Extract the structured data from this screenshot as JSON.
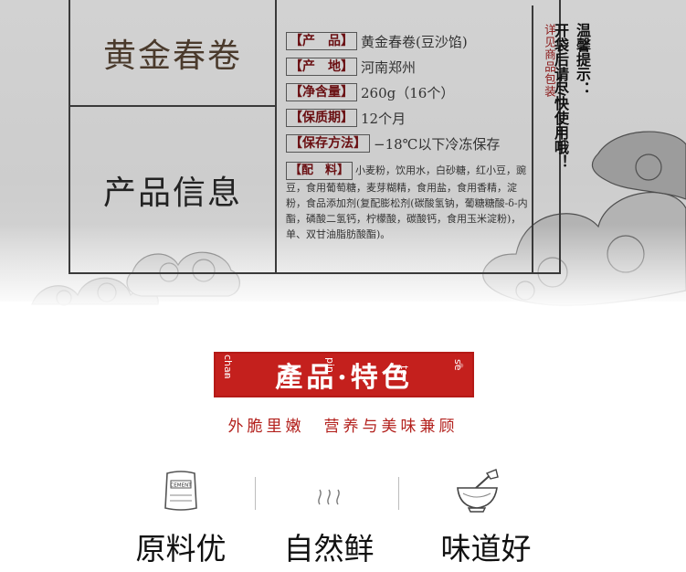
{
  "product": {
    "title": "黄金春卷",
    "section_title": "产品信息",
    "specs": [
      {
        "key": "【产　品】",
        "value": "黄金春卷(豆沙馅)"
      },
      {
        "key": "【产　地】",
        "value": "河南郑州"
      },
      {
        "key": "【净含量】",
        "value": "260g（16个）"
      },
      {
        "key": "【保质期】",
        "value": "12个月"
      },
      {
        "key": "【保存方法】",
        "value": "−18℃以下冷冻保存"
      }
    ],
    "ingredients_key": "【配　料】",
    "ingredients": "小麦粉，饮用水，白砂糖，红小豆，豌豆，食用葡萄糖，麦芽糊精，食用盐，食用香精，淀粉，食品添加剂(复配膨松剂(碳酸氢钠，葡糖糖酸-δ-内酯，磷酸二氢钙，柠檬酸，碳酸钙，食用玉米淀粉)，单、双甘油脂肪酸酯)。",
    "package_note": "详见商品包装",
    "tip_title": "温馨提示：",
    "tip_text": "开袋后请尽快使用哦！"
  },
  "features": {
    "banner_title": "產品·特色",
    "pinyin": [
      "chan",
      "pin",
      "te",
      "se"
    ],
    "slogan": "外脆里嫩　营养与美味兼顾",
    "items": [
      {
        "icon": "cement-bag-icon",
        "icon_text": "CEMENT",
        "label": "原料优"
      },
      {
        "icon": "steam-icon",
        "label": "自然鲜"
      },
      {
        "icon": "mixing-bowl-icon",
        "label": "味道好"
      }
    ]
  },
  "colors": {
    "banner_red": "#c4201d",
    "slogan_red": "#b3211d",
    "title_brown": "#4a3a2c",
    "panel_grey": "#cfcfcf"
  }
}
